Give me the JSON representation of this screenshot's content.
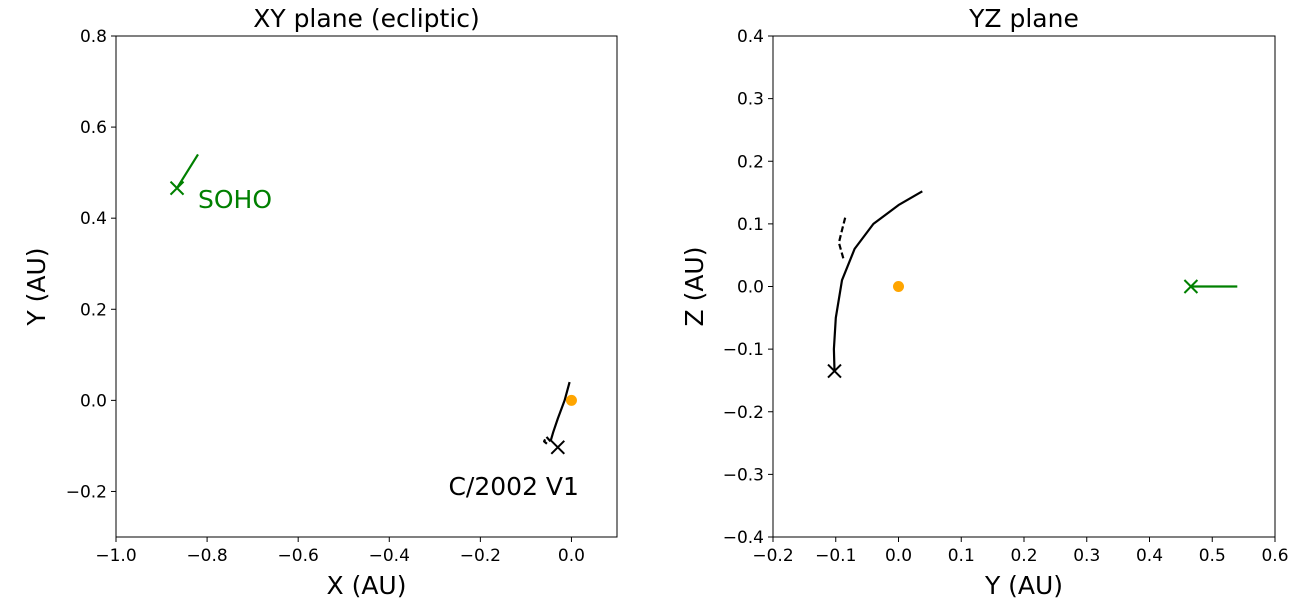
{
  "chart_data": [
    {
      "type": "line",
      "title": "XY plane (ecliptic)",
      "xlabel": "X (AU)",
      "ylabel": "Y (AU)",
      "xlim": [
        -1.0,
        0.1
      ],
      "ylim": [
        -0.3,
        0.8
      ],
      "xticks": [
        -1.0,
        -0.8,
        -0.6,
        -0.4,
        -0.2,
        0.0
      ],
      "xtick_labels": [
        "−1.0",
        "−0.8",
        "−0.6",
        "−0.4",
        "−0.2",
        "0.0"
      ],
      "yticks": [
        -0.2,
        0.0,
        0.2,
        0.4,
        0.6,
        0.8
      ],
      "ytick_labels": [
        "−0.2",
        "0.0",
        "0.2",
        "0.4",
        "0.6",
        "0.8"
      ],
      "grid": false,
      "series": [
        {
          "style": "solid",
          "color": "#000000",
          "points": [
            [
              -0.004,
              0.04
            ],
            [
              -0.015,
              0.0
            ],
            [
              -0.03,
              -0.04
            ],
            [
              -0.04,
              -0.07
            ],
            [
              -0.046,
              -0.09
            ]
          ]
        },
        {
          "style": "dashed",
          "color": "#000000",
          "points": [
            [
              -0.046,
              -0.09
            ],
            [
              -0.055,
              -0.08
            ],
            [
              -0.06,
              -0.09
            ],
            [
              -0.052,
              -0.097
            ]
          ]
        },
        {
          "style": "solid",
          "color": "#008000",
          "points": [
            [
              -0.82,
              0.54
            ],
            [
              -0.866,
              0.466
            ]
          ]
        }
      ],
      "markers": [
        {
          "shape": "x",
          "color": "#000000",
          "x": -0.03,
          "y": -0.103
        },
        {
          "shape": "x",
          "color": "#008000",
          "x": -0.866,
          "y": 0.466
        },
        {
          "shape": "dot",
          "color": "#FFA500",
          "x": 0.0,
          "y": 0.0
        }
      ],
      "annotations": [
        {
          "text": "SOHO",
          "color": "#008000",
          "x": -0.82,
          "y": 0.44
        },
        {
          "text": "C/2002 V1",
          "color": "#000000",
          "x": -0.27,
          "y": -0.19
        }
      ]
    },
    {
      "type": "line",
      "title": "YZ plane",
      "xlabel": "Y (AU)",
      "ylabel": "Z (AU)",
      "xlim": [
        -0.2,
        0.6
      ],
      "ylim": [
        -0.4,
        0.4
      ],
      "xticks": [
        -0.2,
        -0.1,
        0.0,
        0.1,
        0.2,
        0.3,
        0.4,
        0.5,
        0.6
      ],
      "xtick_labels": [
        "−0.2",
        "−0.1",
        "0.0",
        "0.1",
        "0.2",
        "0.3",
        "0.4",
        "0.5",
        "0.6"
      ],
      "yticks": [
        -0.4,
        -0.3,
        -0.2,
        -0.1,
        0.0,
        0.1,
        0.2,
        0.3,
        0.4
      ],
      "ytick_labels": [
        "−0.4",
        "−0.3",
        "−0.2",
        "−0.1",
        "0.0",
        "0.1",
        "0.2",
        "0.3",
        "0.4"
      ],
      "grid": false,
      "series": [
        {
          "style": "solid",
          "color": "#000000",
          "points": [
            [
              0.038,
              0.152
            ],
            [
              0.0,
              0.13
            ],
            [
              -0.04,
              0.1
            ],
            [
              -0.07,
              0.06
            ],
            [
              -0.09,
              0.01
            ],
            [
              -0.1,
              -0.05
            ],
            [
              -0.103,
              -0.1
            ],
            [
              -0.102,
              -0.135
            ]
          ]
        },
        {
          "style": "dashed",
          "color": "#000000",
          "points": [
            [
              -0.088,
              0.045
            ],
            [
              -0.095,
              0.07
            ],
            [
              -0.09,
              0.09
            ],
            [
              -0.085,
              0.11
            ]
          ]
        },
        {
          "style": "solid",
          "color": "#008000",
          "points": [
            [
              0.54,
              0.0
            ],
            [
              0.466,
              0.0
            ]
          ]
        }
      ],
      "markers": [
        {
          "shape": "x",
          "color": "#000000",
          "x": -0.102,
          "y": -0.135
        },
        {
          "shape": "x",
          "color": "#008000",
          "x": 0.466,
          "y": 0.0
        },
        {
          "shape": "dot",
          "color": "#FFA500",
          "x": 0.0,
          "y": 0.0
        }
      ],
      "annotations": []
    }
  ]
}
